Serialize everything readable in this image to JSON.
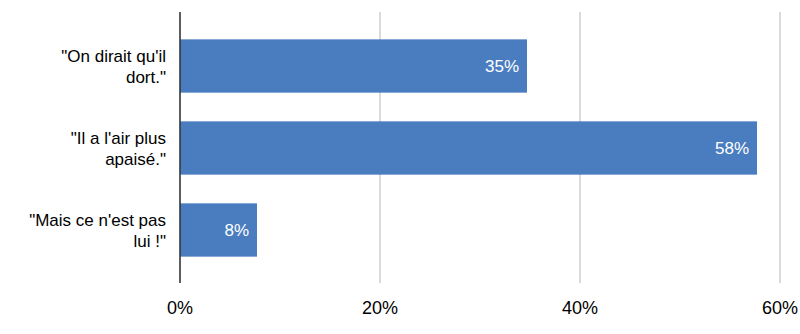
{
  "chart_data": {
    "type": "bar",
    "orientation": "horizontal",
    "categories": [
      "\"On dirait qu'il dort.\"",
      "\"Il a l'air plus apaisé.\"",
      "\"Mais ce n'est pas lui !\""
    ],
    "values": [
      34.7,
      57.7,
      7.7
    ],
    "value_labels": [
      "35%",
      "58%",
      "8%"
    ],
    "color": "#4a7dbf",
    "xlim": [
      0,
      60
    ],
    "xticks": [
      {
        "value": 0,
        "label": "0%"
      },
      {
        "value": 20,
        "label": "20%"
      },
      {
        "value": 40,
        "label": "40%"
      },
      {
        "value": 60,
        "label": "60%"
      }
    ],
    "grid": true,
    "data_labels": true
  }
}
